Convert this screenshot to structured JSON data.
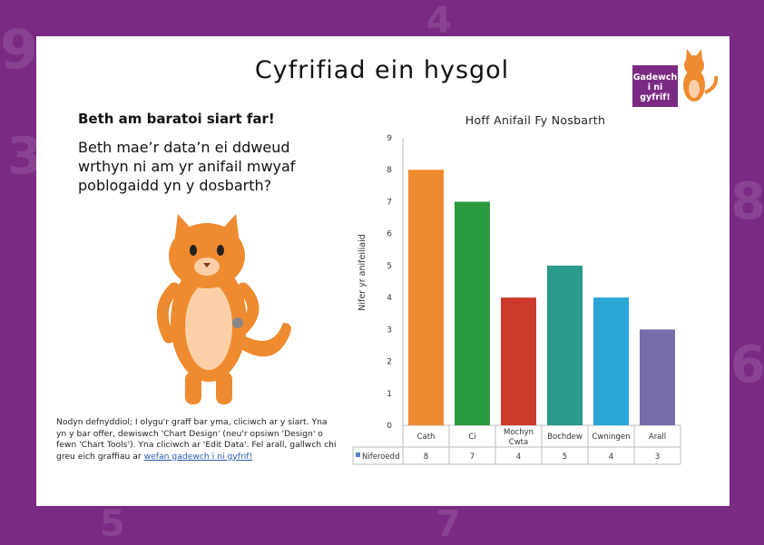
{
  "page": {
    "title": "Cyfrifiad ein hysgol",
    "heading": "Beth am baratoi siart far!",
    "question": "Beth mae’r data’n ei ddweud wrthyn ni am yr anifail mwyaf poblogaidd yn y dosbarth?",
    "note_text": "Nodyn defnyddiol; I olygu'r graff bar yma, cliciwch ar y siart. Yna yn y bar offer, dewiswch 'Chart Design' (neu'r opsiwn 'Design' o fewn 'Chart Tools'). Yna cliciwch ar 'Edit Data'. Fel arall, gallwch chi greu eich graffiau ar ",
    "note_link": "wefan gadewch i ni gyfrif!",
    "logo_text": "Gadewch i ni gyfrif!"
  },
  "colors": {
    "background": "#7a2a83",
    "bars": [
      "#ee8a2f",
      "#2a9a3e",
      "#cc3a2b",
      "#2a9a8a",
      "#2aa6d6",
      "#786ca8"
    ]
  },
  "chart_data": {
    "type": "bar",
    "title": "Hoff Anifail Fy Nosbarth",
    "xlabel": "",
    "ylabel": "Nifer yr anifeiliaid",
    "categories": [
      "Cath",
      "Ci",
      "Mochyn Cwta",
      "Bochdew",
      "Cwningen",
      "Arall"
    ],
    "series": [
      {
        "name": "Niferoedd",
        "values": [
          8,
          7,
          4,
          5,
          4,
          3
        ]
      }
    ],
    "ylim": [
      0,
      9
    ],
    "yticks": [
      0,
      1,
      2,
      3,
      4,
      5,
      6,
      7,
      8,
      9
    ],
    "grid": false,
    "legend": "bottom-left",
    "data_table": true
  }
}
